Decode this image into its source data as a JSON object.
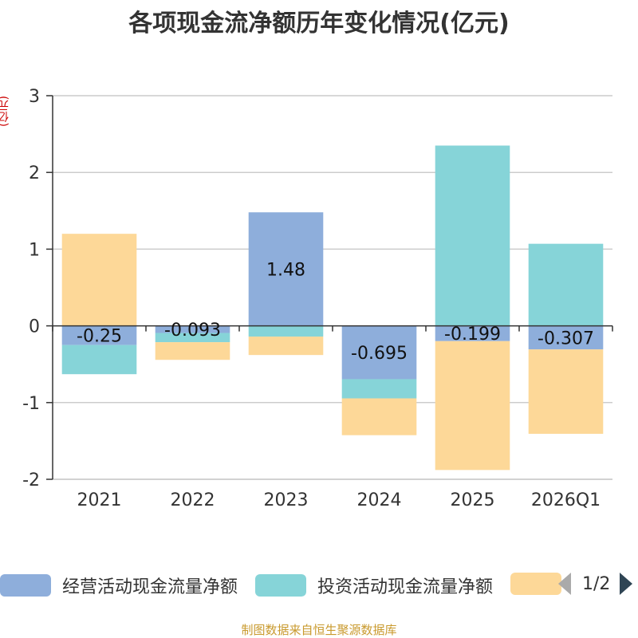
{
  "title": "各项现金流净额历年变化情况(亿元)",
  "unit_label": "(亿元)",
  "source_note": "制图数据来自恒生聚源数据库",
  "legend": {
    "items": [
      {
        "label": "经营活动现金流量净额",
        "color": "#8eaedb"
      },
      {
        "label": "投资活动现金流量净额",
        "color": "#86d4d8"
      },
      {
        "label": "",
        "color": "#fdd898"
      }
    ],
    "page_text": "1/2"
  },
  "chart_data": {
    "type": "bar",
    "stacked": true,
    "categories": [
      "2021",
      "2022",
      "2023",
      "2024",
      "2025",
      "2026Q1"
    ],
    "series": [
      {
        "name": "经营活动现金流量净额",
        "color": "#8eaedb",
        "values": [
          -0.25,
          -0.093,
          1.48,
          -0.695,
          -0.199,
          -0.307
        ],
        "labels": [
          "-0.25",
          "-0.093",
          "1.48",
          "-0.695",
          "-0.199",
          "-0.307"
        ]
      },
      {
        "name": "投资活动现金流量净额",
        "color": "#86d4d8",
        "values": [
          -0.38,
          -0.12,
          -0.14,
          -0.25,
          2.35,
          1.07
        ]
      },
      {
        "name": "",
        "color": "#fdd898",
        "values": [
          1.2,
          -0.23,
          -0.24,
          -0.48,
          -1.68,
          -1.1
        ]
      }
    ],
    "ylim": [
      -2,
      3
    ],
    "yticks": [
      -2,
      -1,
      0,
      1,
      2,
      3
    ],
    "grid": true,
    "legend_position": "bottom"
  }
}
